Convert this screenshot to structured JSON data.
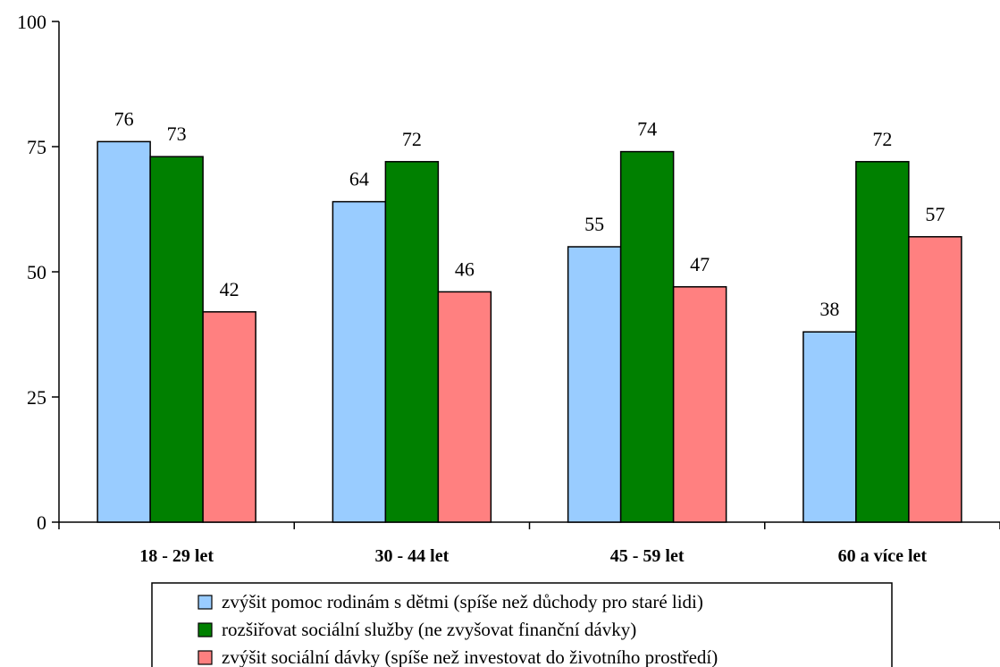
{
  "chart_data": {
    "type": "bar",
    "categories": [
      "18 - 29 let",
      "30 - 44 let",
      "45 - 59 let",
      "60 a více let"
    ],
    "series": [
      {
        "name": "zvýšit pomoc rodinám s dětmi (spíše než důchody pro staré lidi)",
        "color": "#99ccff",
        "values": [
          76,
          64,
          55,
          38
        ]
      },
      {
        "name": "rozšiřovat sociální služby (ne zvyšovat finanční dávky)",
        "color": "#008000",
        "values": [
          73,
          72,
          74,
          72
        ]
      },
      {
        "name": "zvýšit sociální dávky (spíše než investovat do životního prostředí)",
        "color": "#ff8080",
        "values": [
          42,
          46,
          47,
          57
        ]
      }
    ],
    "ylim": [
      0,
      100
    ],
    "yticks": [
      0,
      25,
      50,
      75,
      100
    ],
    "grid": false,
    "legend": "bottom",
    "data_labels": true
  }
}
